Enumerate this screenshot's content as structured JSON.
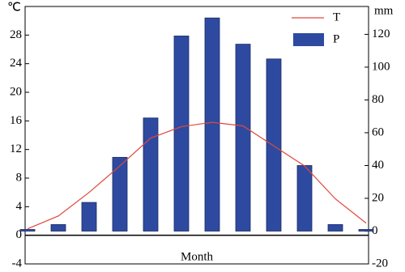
{
  "chart_data": {
    "type": "bar-line",
    "x_label": "Month",
    "y_unit": "℃",
    "y2_unit": "mm",
    "ylim": [
      -4,
      32
    ],
    "yticks": [
      -4,
      0,
      4,
      8,
      12,
      16,
      20,
      24,
      28
    ],
    "y2lim": [
      -20,
      137
    ],
    "y2ticks": [
      -20,
      0,
      20,
      40,
      60,
      80,
      100,
      120
    ],
    "series": [
      {
        "name": "T",
        "type": "line",
        "color": "#e0473c",
        "values": [
          0.9,
          2.7,
          6,
          9.7,
          13.6,
          15.2,
          15.8,
          15.3,
          12.5,
          9.7,
          5.1,
          1.7
        ]
      },
      {
        "name": "P",
        "type": "bar",
        "axis": "y2",
        "color": "#2e4aa0",
        "values": [
          1,
          4,
          17.5,
          45,
          69,
          119,
          130,
          114,
          105,
          40,
          4,
          1
        ]
      }
    ]
  }
}
